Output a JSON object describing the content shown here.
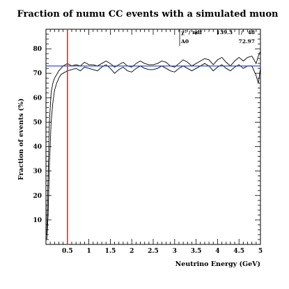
{
  "chart_data": {
    "type": "line",
    "title": "Fraction of numu CC events with a simulated muon",
    "xlabel": "Neutrino Energy (GeV)",
    "ylabel": "Fraction of events (%)",
    "xlim": [
      0,
      5.0
    ],
    "ylim": [
      0,
      88
    ],
    "x_ticks": [
      0.5,
      1,
      1.5,
      2,
      2.5,
      3,
      3.5,
      4,
      4.5,
      5
    ],
    "x_tick_labels": [
      "0.5",
      "1",
      "1.5",
      "2",
      "2.5",
      "3",
      "3.5",
      "4",
      "4.5",
      "5"
    ],
    "y_ticks": [
      10,
      20,
      30,
      40,
      50,
      60,
      70,
      80
    ],
    "y_tick_labels": [
      "10",
      "20",
      "30",
      "40",
      "50",
      "60",
      "70",
      "80"
    ],
    "grid": false,
    "x": [
      0.02,
      0.05,
      0.08,
      0.12,
      0.16,
      0.2,
      0.25,
      0.3,
      0.35,
      0.4,
      0.5,
      0.6,
      0.7,
      0.8,
      0.9,
      1.0,
      1.1,
      1.2,
      1.3,
      1.4,
      1.5,
      1.6,
      1.7,
      1.8,
      1.9,
      2.0,
      2.1,
      2.2,
      2.3,
      2.4,
      2.5,
      2.6,
      2.7,
      2.8,
      2.9,
      3.0,
      3.1,
      3.2,
      3.3,
      3.4,
      3.5,
      3.6,
      3.7,
      3.8,
      3.9,
      4.0,
      4.1,
      4.2,
      4.3,
      4.4,
      4.5,
      4.6,
      4.7,
      4.8,
      4.85,
      4.9,
      4.95,
      5.0
    ],
    "series": [
      {
        "values": [
          4,
          28,
          50,
          62,
          66,
          68,
          69.5,
          71,
          72,
          73,
          74,
          73,
          73.5,
          73,
          74.5,
          73.5,
          73.5,
          73,
          74,
          75,
          74,
          72.5,
          73.5,
          74.5,
          73,
          72.5,
          74,
          75,
          74,
          73.5,
          73.5,
          74,
          75,
          74.5,
          73,
          72.5,
          74,
          75.5,
          74.5,
          73,
          74,
          75,
          76,
          75.5,
          73.5,
          75.5,
          76.5,
          74.5,
          73,
          75,
          76.5,
          75,
          76.5,
          77,
          75.5,
          74,
          77,
          79
        ]
      },
      {
        "values": [
          2,
          12,
          32,
          50,
          58,
          63,
          66,
          68,
          69.5,
          70,
          71,
          71.5,
          72,
          71,
          72.5,
          72,
          71.5,
          71,
          72.5,
          73.5,
          72,
          70,
          71.5,
          72.5,
          71,
          70.5,
          72,
          73,
          72,
          71.5,
          71.5,
          72,
          73,
          72,
          71,
          70.5,
          72,
          73,
          72,
          71,
          72,
          73,
          74,
          73,
          71,
          72.5,
          73.5,
          72,
          71,
          72.5,
          73.5,
          72,
          73,
          73,
          71,
          69,
          66,
          72
        ]
      }
    ],
    "fit": {
      "value": 72.97,
      "color": "#1f3fd0"
    },
    "marker": {
      "x": 0.5,
      "color": "#ff2020"
    },
    "stats": {
      "row1_label": "χ² / ndf",
      "row1_value": "139.3",
      "row1_sep": "/",
      "row1_ndf": "48",
      "row2_label": "A0",
      "row2_value": "72.97"
    }
  }
}
